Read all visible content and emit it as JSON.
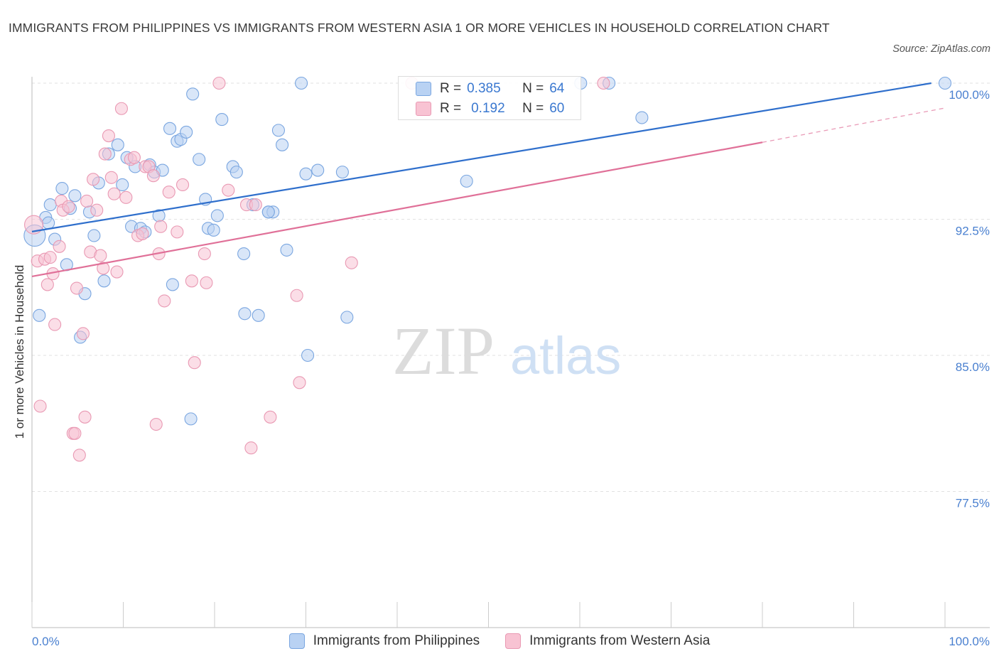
{
  "title": "IMMIGRANTS FROM PHILIPPINES VS IMMIGRANTS FROM WESTERN ASIA 1 OR MORE VEHICLES IN HOUSEHOLD CORRELATION CHART",
  "source": "Source: ZipAtlas.com",
  "watermark": {
    "zip": "ZIP",
    "atlas": "atlas"
  },
  "legend_top": {
    "r_label": "R =",
    "n_label": "N =",
    "rows": [
      {
        "r": "0.385",
        "n": "64"
      },
      {
        "r": "0.192",
        "n": "60"
      }
    ]
  },
  "colors": {
    "blue_fill": "#b9d2f3",
    "blue_stroke": "#7aa6e0",
    "blue_line": "#2f6fcc",
    "pink_fill": "#f8c3d3",
    "pink_stroke": "#e999b3",
    "pink_line": "#e07098",
    "grid": "#e2e2e2",
    "tick_text": "#4a80d0"
  },
  "chart_data": {
    "type": "scatter",
    "title": "IMMIGRANTS FROM PHILIPPINES VS IMMIGRANTS FROM WESTERN ASIA 1 OR MORE VEHICLES IN HOUSEHOLD CORRELATION CHART",
    "xlabel": "",
    "ylabel": "1 or more Vehicles in Household",
    "xlim": [
      0,
      100
    ],
    "ylim": [
      70,
      100
    ],
    "x_tick_labels": [
      "0.0%",
      "100.0%"
    ],
    "y_ticks": [
      77.5,
      85.0,
      92.5,
      100.0
    ],
    "y_tick_labels": [
      "77.5%",
      "85.0%",
      "92.5%",
      "100.0%"
    ],
    "grid": true,
    "legend_position": "bottom",
    "series": [
      {
        "name": "Immigrants from Philippines",
        "color": "#7aa6e0",
        "points": [
          [
            0.3,
            91.6
          ],
          [
            0.8,
            87.2
          ],
          [
            1.5,
            92.6
          ],
          [
            1.8,
            92.3
          ],
          [
            2,
            93.3
          ],
          [
            2.5,
            91.4
          ],
          [
            3.3,
            94.2
          ],
          [
            3.8,
            90.0
          ],
          [
            4.2,
            93.1
          ],
          [
            4.7,
            93.8
          ],
          [
            5.3,
            86.0
          ],
          [
            5.8,
            88.4
          ],
          [
            6.3,
            92.9
          ],
          [
            6.8,
            91.6
          ],
          [
            7.3,
            94.5
          ],
          [
            7.9,
            89.1
          ],
          [
            8.4,
            96.1
          ],
          [
            9.4,
            96.6
          ],
          [
            9.9,
            94.4
          ],
          [
            10.4,
            95.9
          ],
          [
            10.9,
            92.1
          ],
          [
            11.3,
            95.4
          ],
          [
            11.9,
            92.0
          ],
          [
            12.4,
            91.8
          ],
          [
            12.9,
            95.5
          ],
          [
            13.4,
            95.1
          ],
          [
            13.9,
            92.7
          ],
          [
            14.3,
            95.2
          ],
          [
            15.1,
            97.5
          ],
          [
            15.4,
            88.9
          ],
          [
            15.9,
            96.8
          ],
          [
            16.3,
            96.9
          ],
          [
            16.9,
            97.3
          ],
          [
            17.4,
            81.5
          ],
          [
            17.6,
            99.4
          ],
          [
            18.3,
            95.8
          ],
          [
            19.0,
            93.6
          ],
          [
            19.3,
            92.0
          ],
          [
            19.9,
            91.9
          ],
          [
            20.3,
            92.7
          ],
          [
            20.8,
            98.0
          ],
          [
            22.0,
            95.4
          ],
          [
            22.4,
            95.1
          ],
          [
            23.2,
            90.6
          ],
          [
            23.3,
            87.3
          ],
          [
            24.2,
            93.3
          ],
          [
            24.8,
            87.2
          ],
          [
            25.9,
            92.9
          ],
          [
            26.4,
            92.9
          ],
          [
            27.0,
            97.4
          ],
          [
            27.4,
            96.6
          ],
          [
            27.9,
            90.8
          ],
          [
            29.5,
            100.0
          ],
          [
            30.0,
            95.0
          ],
          [
            30.2,
            85.0
          ],
          [
            31.3,
            95.2
          ],
          [
            34.0,
            95.1
          ],
          [
            34.5,
            87.1
          ],
          [
            47.6,
            94.6
          ],
          [
            60.1,
            100.0
          ],
          [
            63.2,
            100.0
          ],
          [
            66.8,
            98.1
          ],
          [
            100.0,
            100.0
          ],
          [
            25.9,
            92.9
          ]
        ]
      },
      {
        "name": "Immigrants from Western Asia",
        "color": "#e999b3",
        "points": [
          [
            0.2,
            92.2
          ],
          [
            0.6,
            90.2
          ],
          [
            0.9,
            82.2
          ],
          [
            1.4,
            90.3
          ],
          [
            1.7,
            88.9
          ],
          [
            2.0,
            90.4
          ],
          [
            2.3,
            89.5
          ],
          [
            2.5,
            86.7
          ],
          [
            3.0,
            91.0
          ],
          [
            3.2,
            93.5
          ],
          [
            3.4,
            93.0
          ],
          [
            4.0,
            93.2
          ],
          [
            4.5,
            80.7
          ],
          [
            4.7,
            80.7
          ],
          [
            4.9,
            88.7
          ],
          [
            5.2,
            79.5
          ],
          [
            5.6,
            86.2
          ],
          [
            5.8,
            81.6
          ],
          [
            6.0,
            93.5
          ],
          [
            6.4,
            90.7
          ],
          [
            6.7,
            94.7
          ],
          [
            7.1,
            93.0
          ],
          [
            7.5,
            90.5
          ],
          [
            7.8,
            89.8
          ],
          [
            8.0,
            96.1
          ],
          [
            8.4,
            97.1
          ],
          [
            8.7,
            94.8
          ],
          [
            9.0,
            93.9
          ],
          [
            9.3,
            89.6
          ],
          [
            9.8,
            98.6
          ],
          [
            10.3,
            93.7
          ],
          [
            10.8,
            95.8
          ],
          [
            11.2,
            95.9
          ],
          [
            11.6,
            91.6
          ],
          [
            12.1,
            91.7
          ],
          [
            12.4,
            95.4
          ],
          [
            12.8,
            95.4
          ],
          [
            13.3,
            94.9
          ],
          [
            13.6,
            81.2
          ],
          [
            13.9,
            90.6
          ],
          [
            14.1,
            92.1
          ],
          [
            14.5,
            88.0
          ],
          [
            15.0,
            94.0
          ],
          [
            15.9,
            91.8
          ],
          [
            16.5,
            94.4
          ],
          [
            17.5,
            89.1
          ],
          [
            17.8,
            84.6
          ],
          [
            18.9,
            90.6
          ],
          [
            19.1,
            89.0
          ],
          [
            20.5,
            100.0
          ],
          [
            21.5,
            94.1
          ],
          [
            23.5,
            93.3
          ],
          [
            24.0,
            79.9
          ],
          [
            24.5,
            93.3
          ],
          [
            26.1,
            81.6
          ],
          [
            29.0,
            88.3
          ],
          [
            29.3,
            83.5
          ],
          [
            35.0,
            90.1
          ],
          [
            41.6,
            100.0
          ],
          [
            62.6,
            100.0
          ]
        ]
      }
    ],
    "trend_lines": [
      {
        "series": "Immigrants from Philippines",
        "x": [
          0,
          98.5
        ],
        "y": [
          91.82,
          100.0
        ]
      },
      {
        "series": "Immigrants from Western Asia",
        "x": [
          0,
          80.0
        ],
        "y": [
          89.35,
          96.74
        ],
        "dashed_extension_to": [
          100,
          98.63
        ]
      }
    ]
  },
  "legend_bottom": [
    {
      "label": "Immigrants from Philippines"
    },
    {
      "label": "Immigrants from Western Asia"
    }
  ]
}
